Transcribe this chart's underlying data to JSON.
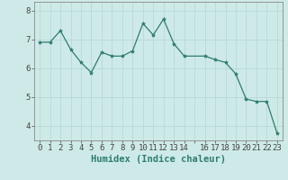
{
  "x": [
    0,
    1,
    2,
    3,
    4,
    5,
    6,
    7,
    8,
    9,
    10,
    11,
    12,
    13,
    14,
    16,
    17,
    18,
    19,
    20,
    21,
    22,
    23
  ],
  "y": [
    6.9,
    6.9,
    7.3,
    6.65,
    6.2,
    5.85,
    6.55,
    6.42,
    6.42,
    6.6,
    7.55,
    7.15,
    7.7,
    6.85,
    6.42,
    6.42,
    6.3,
    6.2,
    5.8,
    4.93,
    4.85,
    4.85,
    3.75
  ],
  "line_color": "#2e7d6e",
  "marker": "*",
  "marker_size": 3,
  "bg_color": "#ceeae8",
  "grid_color": "#b8d8d6",
  "xlabel": "Humidex (Indice chaleur)",
  "ylim": [
    3.5,
    8.3
  ],
  "yticks": [
    4,
    5,
    6,
    7,
    8
  ],
  "all_x_ticks": [
    0,
    1,
    2,
    3,
    4,
    5,
    6,
    7,
    8,
    9,
    10,
    11,
    12,
    13,
    14,
    15,
    16,
    17,
    18,
    19,
    20,
    21,
    22,
    23
  ],
  "xtick_labels": [
    "0",
    "1",
    "2",
    "3",
    "4",
    "5",
    "6",
    "7",
    "8",
    "9",
    "10",
    "11",
    "12",
    "13",
    "14",
    "",
    "16",
    "17",
    "18",
    "19",
    "20",
    "21",
    "22",
    "23"
  ],
  "xlabel_fontsize": 7.5,
  "tick_fontsize": 6.5,
  "line_width": 0.9
}
